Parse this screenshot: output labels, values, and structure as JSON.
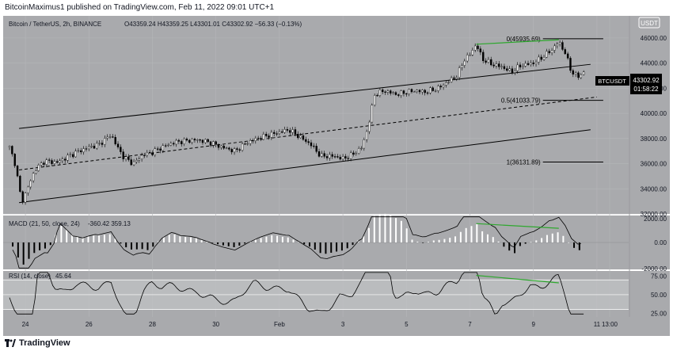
{
  "header": {
    "publisher_text": "BitcoinMaximus1 published on TradingView.com, Feb 11, 2022 09:01 UTC+1"
  },
  "footer": {
    "brand": "TradingView"
  },
  "chart_data": {
    "type": "candlestick",
    "legend": {
      "symbol": "Bitcoin / TetherUS, 2h, BINANCE",
      "ohlc": "O43359.24  H43359.25  L43301.01  C43302.92  −56.33 (−0.13%)"
    },
    "currency_badge": "USDT",
    "price_axis": {
      "min": 32000,
      "max": 47000,
      "ticks": [
        "46000.00",
        "44000.00",
        "42000.00",
        "40000.00",
        "38000.00",
        "36000.00",
        "34000.00",
        "32000.00"
      ]
    },
    "price_label": {
      "symbol": "BTCUSDT",
      "price": "43302.92",
      "countdown": "01:58:22"
    },
    "x_axis": {
      "labels": [
        "24",
        "26",
        "28",
        "30",
        "Feb",
        "3",
        "5",
        "7",
        "9",
        "11",
        "13:00"
      ]
    },
    "price_path": [
      [
        23.5,
        37300
      ],
      [
        23.7,
        35800
      ],
      [
        23.8,
        34000
      ],
      [
        23.9,
        33000
      ],
      [
        24.0,
        33600
      ],
      [
        24.3,
        35500
      ],
      [
        24.6,
        36200
      ],
      [
        25.0,
        36100
      ],
      [
        25.3,
        36500
      ],
      [
        25.6,
        36900
      ],
      [
        26.0,
        37300
      ],
      [
        26.3,
        37500
      ],
      [
        26.7,
        38300
      ],
      [
        26.9,
        37300
      ],
      [
        27.1,
        36500
      ],
      [
        27.4,
        36000
      ],
      [
        27.7,
        36700
      ],
      [
        28.0,
        36900
      ],
      [
        28.3,
        37300
      ],
      [
        28.7,
        37700
      ],
      [
        29.0,
        37800
      ],
      [
        29.4,
        37900
      ],
      [
        29.8,
        37700
      ],
      [
        30.2,
        37300
      ],
      [
        30.6,
        37000
      ],
      [
        31.0,
        37700
      ],
      [
        31.3,
        38000
      ],
      [
        31.7,
        38300
      ],
      [
        32.0,
        38500
      ],
      [
        32.3,
        38700
      ],
      [
        32.6,
        38200
      ],
      [
        33.0,
        37500
      ],
      [
        33.3,
        36600
      ],
      [
        33.7,
        36600
      ],
      [
        34.0,
        36400
      ],
      [
        34.3,
        36700
      ],
      [
        34.6,
        37300
      ],
      [
        34.8,
        39000
      ],
      [
        35.0,
        41500
      ],
      [
        35.3,
        41800
      ],
      [
        35.7,
        41500
      ],
      [
        36.0,
        41700
      ],
      [
        36.3,
        41800
      ],
      [
        36.6,
        41700
      ],
      [
        37.0,
        42000
      ],
      [
        37.3,
        42500
      ],
      [
        37.6,
        43000
      ],
      [
        37.8,
        44200
      ],
      [
        38.0,
        44700
      ],
      [
        38.2,
        45500
      ],
      [
        38.4,
        44300
      ],
      [
        38.7,
        43900
      ],
      [
        39.0,
        43700
      ],
      [
        39.3,
        43300
      ],
      [
        39.6,
        43800
      ],
      [
        40.0,
        44000
      ],
      [
        40.3,
        44500
      ],
      [
        40.6,
        45100
      ],
      [
        40.8,
        45700
      ],
      [
        41.0,
        44800
      ],
      [
        41.2,
        43300
      ],
      [
        41.4,
        42900
      ],
      [
        41.6,
        43300
      ]
    ],
    "channel": {
      "upper": [
        [
          23.8,
          38800
        ],
        [
          41.8,
          43900
        ]
      ],
      "lower": [
        [
          23.8,
          32900
        ],
        [
          41.8,
          38700
        ]
      ],
      "middle": [
        [
          23.8,
          35500
        ],
        [
          42.0,
          41300
        ]
      ]
    },
    "fib_levels": [
      {
        "label": "0(45935.69)",
        "price": 45936
      },
      {
        "label": "0.5(41033.79)",
        "price": 41034
      },
      {
        "label": "1(36131.89)",
        "price": 36132
      }
    ],
    "divergence_line": [
      [
        38.2,
        45500
      ],
      [
        40.8,
        45850
      ]
    ],
    "macd": {
      "label": "MACD (21, 50, close, 24)",
      "values": "-360.42  359.13",
      "axis_ticks": [
        "2000.00",
        "0.00",
        "-2000.00"
      ],
      "range": [
        -2000,
        2000
      ]
    },
    "rsi": {
      "label": "RSI (14, close)",
      "value": "45.64",
      "axis_ticks": [
        "75.00",
        "50.00",
        "25.00"
      ],
      "band": [
        30,
        70
      ],
      "range": [
        20,
        82
      ]
    },
    "colors": {
      "background": "#a9aaad",
      "grid": "#b5b6b9",
      "up_candle": "#ffffff",
      "down_candle": "#000000",
      "divergence": "#2ea82e",
      "rsi_band": "#c0c1c4"
    }
  }
}
